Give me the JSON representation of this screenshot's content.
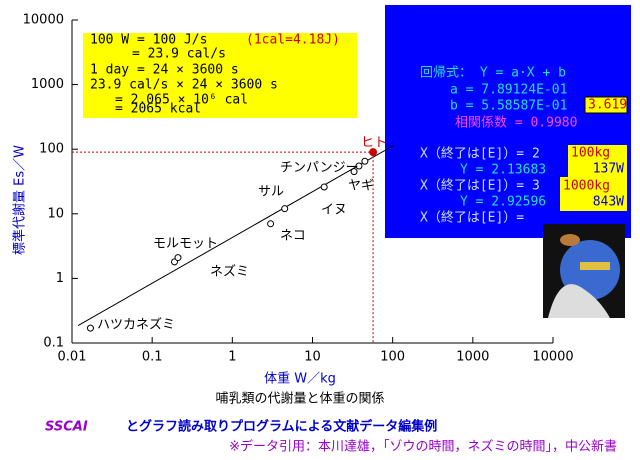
{
  "chart_data": {
    "type": "scatter",
    "x_label": "体重 W／kg",
    "y_label": "標準代謝量 Es／W",
    "caption": "哺乳類の代謝量と体重の関係",
    "log_x": true,
    "log_y": true,
    "xlim": [
      0.01,
      10000
    ],
    "ylim": [
      0.1,
      10000
    ],
    "xticks": [
      0.01,
      0.1,
      1,
      10,
      100,
      1000,
      10000
    ],
    "yticks": [
      0.1,
      1,
      10,
      100,
      1000,
      10000
    ],
    "series": [
      {
        "color": "#000000",
        "x": [
          0.017,
          0.19,
          0.21,
          3.0,
          4.5,
          14,
          33,
          38,
          45
        ],
        "values": [
          0.17,
          1.8,
          2.1,
          7.0,
          12,
          26,
          45,
          55,
          65
        ]
      },
      {
        "color": "#cc0000",
        "x": [
          57
        ],
        "values": [
          90
        ]
      }
    ],
    "point_labels": [
      "ハツカネズミ",
      "モルモット",
      "ネズミ",
      "ネコ",
      "サル",
      "イヌ",
      "ヤギ",
      "チンパンジー",
      "ヒト"
    ],
    "info_box": [
      "100 W = 100 J/s",
      "(1cal=4.18J)",
      "= 23.9 cal/s",
      "1 day = 24 × 3600 s",
      "23.9 cal/s × 24 × 3600 s",
      "= 2.065 × 10⁶ cal",
      "= 2065 kcal"
    ],
    "regression_panel": {
      "formula": "回帰式： Y = a·X + b",
      "a": "a = 7.89124E-01",
      "b": "b = 5.58587E-01",
      "b_highlight": "3.619",
      "correlation": "相関係数 = 0.9980",
      "queries": [
        "X（終了は[E]）= 2",
        "Y = 2.13683",
        "X（終了は[E]）= 3",
        "Y = 2.92596",
        "X（終了は[E]）="
      ],
      "results": [
        "100kg",
        "137W",
        "1000kg",
        "843W"
      ]
    },
    "footer_brand": "SSCAI",
    "footer_title": "とグラフ読み取りプログラムによる文献データ編集例",
    "footer_source": "※データ引用：本川達雄，「ゾウの時間，ネズミの時間」，中公新書"
  }
}
